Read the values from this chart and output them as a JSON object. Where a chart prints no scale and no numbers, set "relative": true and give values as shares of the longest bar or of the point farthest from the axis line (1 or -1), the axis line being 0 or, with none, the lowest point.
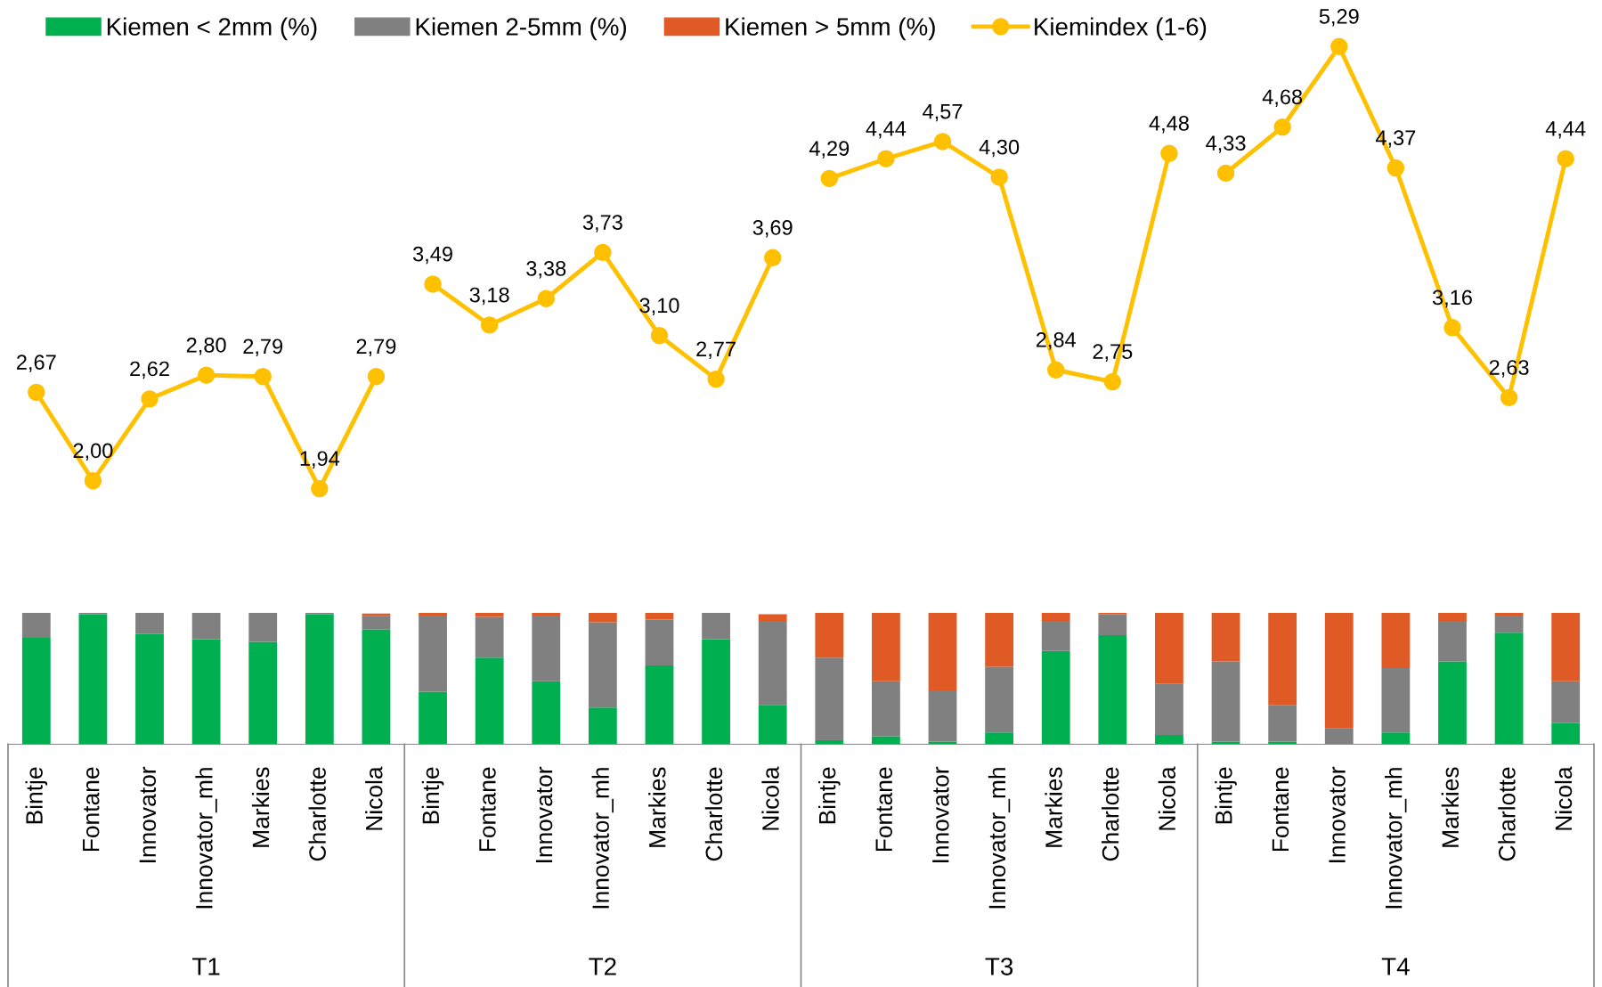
{
  "chart_data": [
    {
      "type": "line",
      "legend": "top",
      "tick_labels": false,
      "marker": "circle",
      "line_style": "solid",
      "categories": [
        null,
        null,
        null,
        null,
        null,
        null,
        null,
        null,
        null,
        null,
        null,
        null,
        null,
        null,
        null,
        null,
        null,
        null,
        null,
        null,
        null,
        null,
        null,
        null,
        null,
        null,
        null,
        null
      ],
      "series": [
        {
          "name": "Kiemindex (1-6)",
          "color": "#ffc000",
          "values": [
            2.67,
            2.0,
            2.62,
            2.8,
            2.79,
            1.94,
            2.79,
            null,
            null,
            null,
            null,
            null,
            null,
            null,
            null,
            null,
            null,
            null,
            null,
            null,
            null,
            null,
            null,
            null,
            null,
            null,
            null,
            null
          ],
          "value_labels": [
            "2,67",
            "2,00",
            "2,62",
            "2,80",
            "2,79",
            "1,94",
            "2,79",
            null,
            null,
            null,
            null,
            null,
            null,
            null,
            null,
            null,
            null,
            null,
            null,
            null,
            null,
            null,
            null,
            null,
            null,
            null,
            null,
            null
          ]
        },
        {
          "color": "#ffc000",
          "values": [
            null,
            null,
            null,
            null,
            null,
            null,
            null,
            3.49,
            3.18,
            3.38,
            3.73,
            3.1,
            2.77,
            3.69,
            null,
            null,
            null,
            null,
            null,
            null,
            null,
            null,
            null,
            null,
            null,
            null,
            null,
            null
          ],
          "value_labels": [
            null,
            null,
            null,
            null,
            null,
            null,
            null,
            "3,49",
            "3,18",
            "3,38",
            "3,73",
            "3,10",
            "2,77",
            "3,69",
            null,
            null,
            null,
            null,
            null,
            null,
            null,
            null,
            null,
            null,
            null,
            null,
            null,
            null
          ]
        },
        {
          "color": "#ffc000",
          "values": [
            null,
            null,
            null,
            null,
            null,
            null,
            null,
            null,
            null,
            null,
            null,
            null,
            null,
            null,
            4.29,
            4.44,
            4.57,
            4.3,
            2.84,
            2.75,
            4.48,
            null,
            null,
            null,
            null,
            null,
            null,
            null
          ],
          "value_labels": [
            null,
            null,
            null,
            null,
            null,
            null,
            null,
            null,
            null,
            null,
            null,
            null,
            null,
            null,
            "4,29",
            "4,44",
            "4,57",
            "4,30",
            "2,84",
            "2,75",
            "4,48",
            null,
            null,
            null,
            null,
            null,
            null,
            null
          ]
        },
        {
          "color": "#ffc000",
          "values": [
            null,
            null,
            null,
            null,
            null,
            null,
            null,
            null,
            null,
            null,
            null,
            null,
            null,
            null,
            null,
            null,
            null,
            null,
            null,
            null,
            null,
            4.33,
            4.68,
            5.29,
            4.37,
            3.16,
            2.63,
            4.44
          ],
          "value_labels": [
            null,
            null,
            null,
            null,
            null,
            null,
            null,
            null,
            null,
            null,
            null,
            null,
            null,
            null,
            null,
            null,
            null,
            null,
            null,
            null,
            null,
            "4,33",
            "4,68",
            "5,29",
            "4,37",
            "3,16",
            "2,63",
            "4,44"
          ]
        }
      ]
    },
    {
      "type": "bar",
      "stacked": true,
      "relative": true,
      "legend": "top",
      "grid": false,
      "categories": [
        "Bintje",
        "Fontane",
        "Innovator",
        "Innovator_mh",
        "Markies",
        "Charlotte",
        "Nicola",
        "Bintje",
        "Fontane",
        "Innovator",
        "Innovator_mh",
        "Markies",
        "Charlotte",
        "Nicola",
        "Bintje",
        "Fontane",
        "Innovator",
        "Innovator_mh",
        "Markies",
        "Charlotte",
        "Nicola",
        "Bintje",
        "Fontane",
        "Innovator",
        "Innovator_mh",
        "Markies",
        "Charlotte",
        "Nicola"
      ],
      "annotations": [
        "T1",
        "T2",
        "T3",
        "T4"
      ],
      "series": [
        {
          "name": "Kiemen < 2mm (%)",
          "color": "#00b050",
          "values": [
            0.81,
            0.99,
            0.84,
            0.8,
            0.78,
            0.99,
            0.875,
            0.4,
            0.66,
            0.48,
            0.28,
            0.6,
            0.8,
            0.3,
            0.03,
            0.06,
            0.02,
            0.09,
            0.71,
            0.83,
            0.07,
            0.02,
            0.02,
            0,
            0.09,
            0.63,
            0.85,
            0.16
          ]
        },
        {
          "name": "Kiemen 2-5mm (%)",
          "color": "#808080",
          "values": [
            0.19,
            0.01,
            0.16,
            0.2,
            0.22,
            0.01,
            0.1,
            0.58,
            0.31,
            0.5,
            0.65,
            0.35,
            0.2,
            0.64,
            0.63,
            0.42,
            0.39,
            0.5,
            0.23,
            0.16,
            0.39,
            0.61,
            0.28,
            0.12,
            0.49,
            0.31,
            0.13,
            0.32
          ]
        },
        {
          "name": "Kiemen > 5mm (%)",
          "color": "#e05a26",
          "values": [
            0,
            0,
            0,
            0,
            0,
            0,
            0.02,
            0.02,
            0.03,
            0.02,
            0.07,
            0.05,
            0,
            0.05,
            0.34,
            0.52,
            0.59,
            0.41,
            0.06,
            0.01,
            0.54,
            0.37,
            0.7,
            0.88,
            0.42,
            0.06,
            0.02,
            0.52
          ]
        }
      ]
    }
  ]
}
